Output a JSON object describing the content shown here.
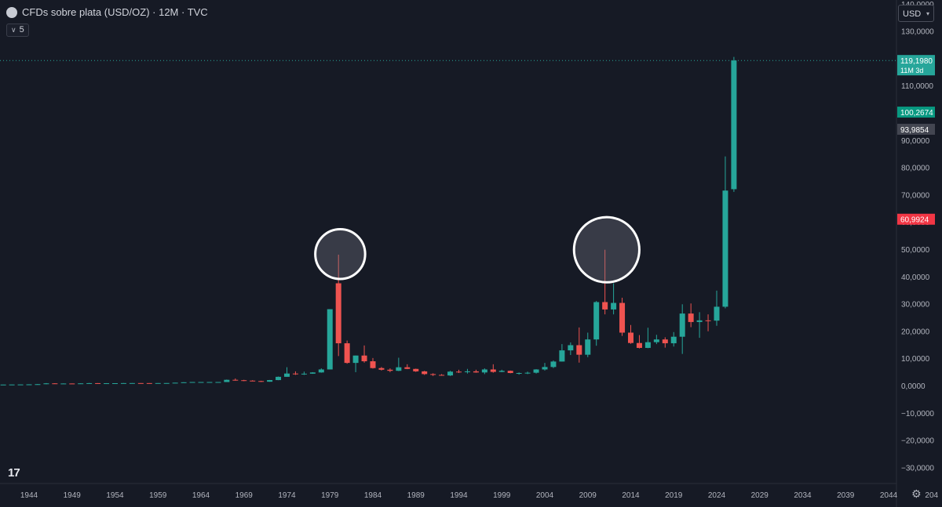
{
  "header": {
    "title": "CFDs sobre plata (USD/OZ) · 12M · TVC",
    "indicator_count": "5",
    "currency": "USD"
  },
  "footer": {
    "logo": "17"
  },
  "colors": {
    "background": "#161a25",
    "up": "#26a69a",
    "down": "#ef5350",
    "grid_line": "#2a2e39",
    "annotation_circle": "#ffffff"
  },
  "chart_data": {
    "type": "candlestick",
    "title": "CFDs sobre plata (USD/OZ) · 12M · TVC",
    "x_ticks": [
      "1944",
      "1949",
      "1954",
      "1959",
      "1964",
      "1969",
      "1974",
      "1979",
      "1984",
      "1989",
      "1994",
      "1999",
      "2004",
      "2009",
      "2014",
      "2019",
      "2024",
      "2029",
      "2034",
      "2039",
      "2044",
      "204"
    ],
    "xlim": [
      1941,
      2048
    ],
    "y_ticks": [
      "140,0000",
      "130,0000",
      "120,0000",
      "110,0000",
      "100,0000",
      "90,0000",
      "80,0000",
      "70,0000",
      "60,0000",
      "50,0000",
      "40,0000",
      "30,0000",
      "20,0000",
      "10,0000",
      "0,0000",
      "−10,0000",
      "−20,0000",
      "−30,0000"
    ],
    "y_tick_values": [
      140,
      130,
      120,
      110,
      100,
      90,
      80,
      70,
      60,
      50,
      40,
      30,
      20,
      10,
      0,
      -10,
      -20,
      -30
    ],
    "ylim": [
      -33,
      145
    ],
    "candles": [
      {
        "x": 1941,
        "o": 0.35,
        "h": 0.38,
        "l": 0.34,
        "c": 0.36
      },
      {
        "x": 1942,
        "o": 0.36,
        "h": 0.4,
        "l": 0.35,
        "c": 0.38
      },
      {
        "x": 1943,
        "o": 0.38,
        "h": 0.42,
        "l": 0.37,
        "c": 0.4
      },
      {
        "x": 1944,
        "o": 0.4,
        "h": 0.45,
        "l": 0.39,
        "c": 0.43
      },
      {
        "x": 1945,
        "o": 0.43,
        "h": 0.55,
        "l": 0.42,
        "c": 0.5
      },
      {
        "x": 1946,
        "o": 0.5,
        "h": 0.9,
        "l": 0.48,
        "c": 0.8
      },
      {
        "x": 1947,
        "o": 0.8,
        "h": 0.85,
        "l": 0.6,
        "c": 0.7
      },
      {
        "x": 1948,
        "o": 0.7,
        "h": 0.78,
        "l": 0.68,
        "c": 0.75
      },
      {
        "x": 1949,
        "o": 0.75,
        "h": 0.76,
        "l": 0.7,
        "c": 0.72
      },
      {
        "x": 1950,
        "o": 0.72,
        "h": 0.82,
        "l": 0.7,
        "c": 0.8
      },
      {
        "x": 1951,
        "o": 0.8,
        "h": 0.95,
        "l": 0.78,
        "c": 0.88
      },
      {
        "x": 1952,
        "o": 0.88,
        "h": 0.9,
        "l": 0.8,
        "c": 0.84
      },
      {
        "x": 1953,
        "o": 0.84,
        "h": 0.88,
        "l": 0.82,
        "c": 0.85
      },
      {
        "x": 1954,
        "o": 0.85,
        "h": 0.88,
        "l": 0.84,
        "c": 0.86
      },
      {
        "x": 1955,
        "o": 0.86,
        "h": 0.92,
        "l": 0.85,
        "c": 0.9
      },
      {
        "x": 1956,
        "o": 0.9,
        "h": 0.93,
        "l": 0.88,
        "c": 0.91
      },
      {
        "x": 1957,
        "o": 0.91,
        "h": 0.92,
        "l": 0.89,
        "c": 0.9
      },
      {
        "x": 1958,
        "o": 0.9,
        "h": 0.91,
        "l": 0.88,
        "c": 0.89
      },
      {
        "x": 1959,
        "o": 0.89,
        "h": 0.92,
        "l": 0.88,
        "c": 0.91
      },
      {
        "x": 1960,
        "o": 0.91,
        "h": 0.93,
        "l": 0.9,
        "c": 0.92
      },
      {
        "x": 1961,
        "o": 0.92,
        "h": 1.05,
        "l": 0.91,
        "c": 1.04
      },
      {
        "x": 1962,
        "o": 1.04,
        "h": 1.22,
        "l": 1.02,
        "c": 1.2
      },
      {
        "x": 1963,
        "o": 1.2,
        "h": 1.3,
        "l": 1.19,
        "c": 1.29
      },
      {
        "x": 1964,
        "o": 1.29,
        "h": 1.3,
        "l": 1.28,
        "c": 1.29
      },
      {
        "x": 1965,
        "o": 1.29,
        "h": 1.3,
        "l": 1.28,
        "c": 1.29
      },
      {
        "x": 1966,
        "o": 1.29,
        "h": 1.3,
        "l": 1.28,
        "c": 1.29
      },
      {
        "x": 1967,
        "o": 1.29,
        "h": 2.2,
        "l": 1.29,
        "c": 2.1
      },
      {
        "x": 1968,
        "o": 2.1,
        "h": 2.6,
        "l": 1.8,
        "c": 1.95
      },
      {
        "x": 1969,
        "o": 1.95,
        "h": 2.1,
        "l": 1.6,
        "c": 1.8
      },
      {
        "x": 1970,
        "o": 1.8,
        "h": 1.95,
        "l": 1.55,
        "c": 1.64
      },
      {
        "x": 1971,
        "o": 1.64,
        "h": 1.75,
        "l": 1.3,
        "c": 1.4
      },
      {
        "x": 1972,
        "o": 1.4,
        "h": 2.05,
        "l": 1.38,
        "c": 2.0
      },
      {
        "x": 1973,
        "o": 2.0,
        "h": 3.3,
        "l": 1.95,
        "c": 3.2
      },
      {
        "x": 1974,
        "o": 3.2,
        "h": 6.7,
        "l": 3.2,
        "c": 4.4
      },
      {
        "x": 1975,
        "o": 4.4,
        "h": 5.2,
        "l": 3.9,
        "c": 4.15
      },
      {
        "x": 1976,
        "o": 4.15,
        "h": 5.1,
        "l": 3.9,
        "c": 4.35
      },
      {
        "x": 1977,
        "o": 4.35,
        "h": 4.9,
        "l": 4.3,
        "c": 4.8
      },
      {
        "x": 1978,
        "o": 4.8,
        "h": 6.3,
        "l": 4.7,
        "c": 5.9
      },
      {
        "x": 1979,
        "o": 5.9,
        "h": 28.0,
        "l": 5.9,
        "c": 28.0
      },
      {
        "x": 1980,
        "o": 37.5,
        "h": 48.0,
        "l": 10.8,
        "c": 15.5
      },
      {
        "x": 1981,
        "o": 15.5,
        "h": 16.5,
        "l": 8.0,
        "c": 8.3
      },
      {
        "x": 1982,
        "o": 8.3,
        "h": 11.0,
        "l": 4.9,
        "c": 11.0
      },
      {
        "x": 1983,
        "o": 11.0,
        "h": 14.7,
        "l": 8.4,
        "c": 8.9
      },
      {
        "x": 1984,
        "o": 8.9,
        "h": 10.1,
        "l": 6.2,
        "c": 6.4
      },
      {
        "x": 1985,
        "o": 6.4,
        "h": 6.8,
        "l": 5.5,
        "c": 5.8
      },
      {
        "x": 1986,
        "o": 5.8,
        "h": 6.3,
        "l": 4.9,
        "c": 5.4
      },
      {
        "x": 1987,
        "o": 5.4,
        "h": 10.2,
        "l": 5.3,
        "c": 6.7
      },
      {
        "x": 1988,
        "o": 6.7,
        "h": 7.8,
        "l": 6.0,
        "c": 6.1
      },
      {
        "x": 1989,
        "o": 6.1,
        "h": 6.2,
        "l": 5.0,
        "c": 5.2
      },
      {
        "x": 1990,
        "o": 5.2,
        "h": 5.4,
        "l": 3.9,
        "c": 4.2
      },
      {
        "x": 1991,
        "o": 4.2,
        "h": 4.5,
        "l": 3.5,
        "c": 3.9
      },
      {
        "x": 1992,
        "o": 3.9,
        "h": 4.2,
        "l": 3.6,
        "c": 3.7
      },
      {
        "x": 1993,
        "o": 3.7,
        "h": 5.4,
        "l": 3.5,
        "c": 5.1
      },
      {
        "x": 1994,
        "o": 5.1,
        "h": 5.8,
        "l": 4.6,
        "c": 4.9
      },
      {
        "x": 1995,
        "o": 4.9,
        "h": 6.1,
        "l": 4.4,
        "c": 5.2
      },
      {
        "x": 1996,
        "o": 5.2,
        "h": 5.8,
        "l": 4.7,
        "c": 4.8
      },
      {
        "x": 1997,
        "o": 4.8,
        "h": 6.3,
        "l": 4.2,
        "c": 5.9
      },
      {
        "x": 1998,
        "o": 5.9,
        "h": 7.8,
        "l": 4.7,
        "c": 5.0
      },
      {
        "x": 1999,
        "o": 5.0,
        "h": 5.8,
        "l": 4.9,
        "c": 5.4
      },
      {
        "x": 2000,
        "o": 5.4,
        "h": 5.5,
        "l": 4.5,
        "c": 4.6
      },
      {
        "x": 2001,
        "o": 4.6,
        "h": 4.8,
        "l": 4.0,
        "c": 4.6
      },
      {
        "x": 2002,
        "o": 4.6,
        "h": 5.1,
        "l": 4.2,
        "c": 4.7
      },
      {
        "x": 2003,
        "o": 4.7,
        "h": 6.0,
        "l": 4.4,
        "c": 5.9
      },
      {
        "x": 2004,
        "o": 5.9,
        "h": 8.3,
        "l": 5.5,
        "c": 6.8
      },
      {
        "x": 2005,
        "o": 6.8,
        "h": 9.2,
        "l": 6.4,
        "c": 8.8
      },
      {
        "x": 2006,
        "o": 8.8,
        "h": 15.2,
        "l": 8.8,
        "c": 12.9
      },
      {
        "x": 2007,
        "o": 12.9,
        "h": 15.8,
        "l": 11.2,
        "c": 14.8
      },
      {
        "x": 2008,
        "o": 14.8,
        "h": 21.3,
        "l": 8.4,
        "c": 11.3
      },
      {
        "x": 2009,
        "o": 11.3,
        "h": 19.4,
        "l": 10.4,
        "c": 16.9
      },
      {
        "x": 2010,
        "o": 16.9,
        "h": 31.0,
        "l": 14.6,
        "c": 30.6
      },
      {
        "x": 2011,
        "o": 30.6,
        "h": 49.8,
        "l": 26.1,
        "c": 27.9
      },
      {
        "x": 2012,
        "o": 27.9,
        "h": 37.5,
        "l": 26.1,
        "c": 30.3
      },
      {
        "x": 2013,
        "o": 30.3,
        "h": 32.2,
        "l": 18.2,
        "c": 19.4
      },
      {
        "x": 2014,
        "o": 19.4,
        "h": 22.2,
        "l": 15.3,
        "c": 15.6
      },
      {
        "x": 2015,
        "o": 15.6,
        "h": 18.5,
        "l": 13.6,
        "c": 13.8
      },
      {
        "x": 2016,
        "o": 13.8,
        "h": 21.2,
        "l": 13.7,
        "c": 15.9
      },
      {
        "x": 2017,
        "o": 15.9,
        "h": 18.6,
        "l": 15.2,
        "c": 16.9
      },
      {
        "x": 2018,
        "o": 16.9,
        "h": 17.7,
        "l": 13.9,
        "c": 15.5
      },
      {
        "x": 2019,
        "o": 15.5,
        "h": 19.6,
        "l": 14.3,
        "c": 17.9
      },
      {
        "x": 2020,
        "o": 17.9,
        "h": 29.8,
        "l": 11.6,
        "c": 26.4
      },
      {
        "x": 2021,
        "o": 26.4,
        "h": 30.1,
        "l": 21.4,
        "c": 23.3
      },
      {
        "x": 2022,
        "o": 23.3,
        "h": 26.9,
        "l": 17.5,
        "c": 23.9
      },
      {
        "x": 2023,
        "o": 23.9,
        "h": 26.1,
        "l": 19.9,
        "c": 23.8
      },
      {
        "x": 2024,
        "o": 23.8,
        "h": 34.8,
        "l": 21.9,
        "c": 28.9
      },
      {
        "x": 2025,
        "o": 28.9,
        "h": 84.0,
        "l": 28.3,
        "c": 71.5
      },
      {
        "x": 2026,
        "o": 72.0,
        "h": 120.5,
        "l": 71.0,
        "c": 119.2
      }
    ],
    "last_price_line": 119.198,
    "price_labels": [
      {
        "value": 119.198,
        "text": "119,1980",
        "sub": "11M 3d",
        "bg": "#26a69a",
        "fg": "#ffffff"
      },
      {
        "value": 100.2674,
        "text": "100,2674",
        "bg": "#089981",
        "fg": "#ffffff"
      },
      {
        "value": 93.9854,
        "text": "93,9854",
        "bg": "#434651",
        "fg": "#ffffff"
      },
      {
        "value": 60.9924,
        "text": "60,9924",
        "bg": "#f23645",
        "fg": "#ffffff"
      }
    ],
    "annotations": [
      {
        "type": "circle",
        "x": 1980.2,
        "y": 48.2,
        "r_years": 2.9
      },
      {
        "type": "circle",
        "x": 2011.2,
        "y": 49.8,
        "r_years": 3.8
      }
    ],
    "grid": false
  }
}
